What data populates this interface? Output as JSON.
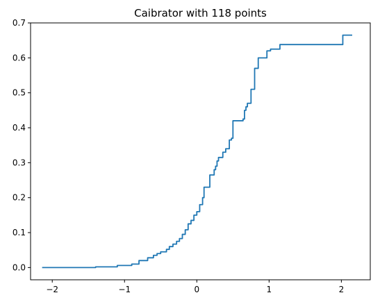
{
  "chart_data": {
    "type": "line",
    "title": "Caibrator with 118 points",
    "xlabel": "",
    "ylabel": "",
    "xlim": [
      -2.3,
      2.4
    ],
    "ylim": [
      -0.035,
      0.7
    ],
    "xticks": [
      -2,
      -1,
      0,
      1,
      2
    ],
    "xtick_labels": [
      "−2",
      "−1",
      "0",
      "1",
      "2"
    ],
    "yticks": [
      0.0,
      0.1,
      0.2,
      0.3,
      0.4,
      0.5,
      0.6,
      0.7
    ],
    "ytick_labels": [
      "0.0",
      "0.1",
      "0.2",
      "0.3",
      "0.4",
      "0.5",
      "0.6",
      "0.7"
    ],
    "grid": false,
    "step": "post",
    "series": [
      {
        "color": "#1f77b4",
        "x": [
          -2.14,
          -1.4,
          -1.1,
          -0.9,
          -0.8,
          -0.68,
          -0.6,
          -0.55,
          -0.5,
          -0.42,
          -0.38,
          -0.33,
          -0.28,
          -0.24,
          -0.2,
          -0.16,
          -0.12,
          -0.08,
          -0.04,
          0.0,
          0.04,
          0.08,
          0.1,
          0.13,
          0.18,
          0.24,
          0.26,
          0.28,
          0.3,
          0.32,
          0.36,
          0.4,
          0.45,
          0.48,
          0.5,
          0.53,
          0.64,
          0.66,
          0.68,
          0.7,
          0.75,
          0.8,
          0.85,
          0.9,
          0.97,
          1.02,
          1.15,
          2.02,
          2.15
        ],
        "y": [
          0.0,
          0.002,
          0.006,
          0.01,
          0.02,
          0.028,
          0.035,
          0.04,
          0.045,
          0.052,
          0.06,
          0.067,
          0.075,
          0.083,
          0.095,
          0.108,
          0.125,
          0.135,
          0.15,
          0.16,
          0.18,
          0.2,
          0.23,
          0.23,
          0.265,
          0.28,
          0.29,
          0.305,
          0.315,
          0.315,
          0.33,
          0.34,
          0.365,
          0.37,
          0.42,
          0.42,
          0.425,
          0.45,
          0.46,
          0.47,
          0.51,
          0.57,
          0.6,
          0.6,
          0.62,
          0.625,
          0.638,
          0.665,
          0.665
        ]
      }
    ]
  }
}
